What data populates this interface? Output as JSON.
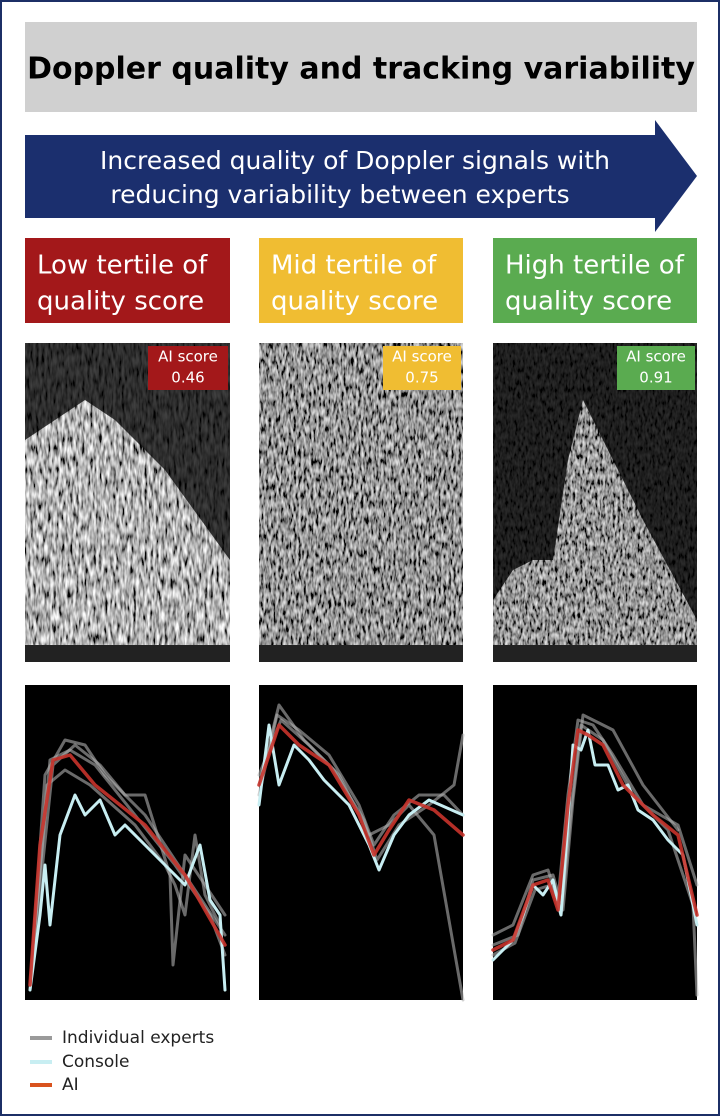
{
  "header": {
    "title": "Doppler quality and tracking variability"
  },
  "arrow": {
    "lines": [
      "Increased quality of Doppler signals with",
      "reducing variability between experts"
    ]
  },
  "panels": [
    {
      "tertile": [
        "Low tertile of",
        "quality score"
      ],
      "badge_label": "AI score",
      "ai_score": 0.46
    },
    {
      "tertile": [
        "Mid tertile of",
        "quality score"
      ],
      "badge_label": "AI score",
      "ai_score": 0.75
    },
    {
      "tertile": [
        "High tertile of",
        "quality score"
      ],
      "badge_label": "AI score",
      "ai_score": 0.91
    }
  ],
  "legend": [
    {
      "label": "Individual experts"
    },
    {
      "label": "Console"
    },
    {
      "label": "AI"
    }
  ]
}
